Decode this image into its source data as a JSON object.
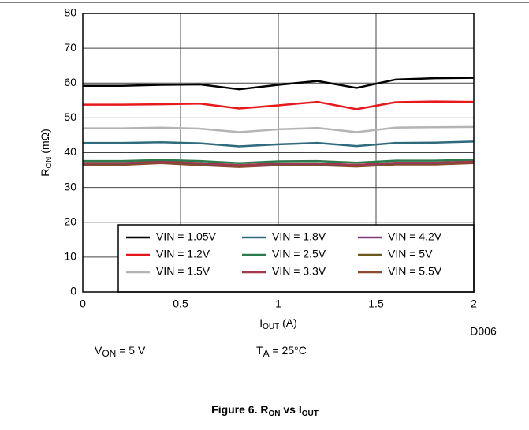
{
  "chart_data": {
    "type": "line",
    "ylabel": [
      "R",
      "ON",
      " (mΩ)"
    ],
    "xlabel": [
      "I",
      "OUT",
      " (A)"
    ],
    "annotations": [
      [
        "V",
        "ON",
        " = 5 V"
      ],
      [
        "T",
        "A",
        " = 25°C"
      ]
    ],
    "caption": [
      "Figure 6. R",
      "ON",
      " vs I",
      "OUT"
    ],
    "figure_id": "D006",
    "x": [
      0,
      0.2,
      0.4,
      0.6,
      0.8,
      1,
      1.2,
      1.4,
      1.6,
      1.8,
      2
    ],
    "xlim": [
      0,
      2
    ],
    "xticks": [
      0,
      0.5,
      1,
      1.5,
      2
    ],
    "ylim": [
      0,
      80
    ],
    "yticks": [
      0,
      10,
      20,
      30,
      40,
      50,
      60,
      70,
      80
    ],
    "grid": true,
    "legend": "lower right",
    "legend_columns": 3,
    "series": [
      {
        "name": "VIN = 1.05V",
        "color": "#000000",
        "values": [
          59.2,
          59.2,
          59.5,
          59.6,
          58.2,
          59.5,
          60.6,
          58.6,
          61,
          61.4,
          61.5
        ]
      },
      {
        "name": "VIN = 1.2V",
        "color": "#e8191c",
        "values": [
          53.8,
          53.8,
          53.9,
          54.1,
          52.7,
          53.6,
          54.6,
          52.5,
          54.5,
          54.7,
          54.6
        ]
      },
      {
        "name": "VIN = 1.5V",
        "color": "#b4b4b4",
        "values": [
          47,
          47,
          47.2,
          46.9,
          45.9,
          46.7,
          47.1,
          45.9,
          47.2,
          47.3,
          47.4
        ]
      },
      {
        "name": "VIN = 1.8V",
        "color": "#2f6a7d",
        "values": [
          42.8,
          42.8,
          43,
          42.7,
          41.8,
          42.4,
          42.8,
          41.9,
          42.8,
          42.9,
          43.2
        ]
      },
      {
        "name": "VIN = 2.5V",
        "color": "#2e7a4f",
        "values": [
          37.6,
          37.6,
          37.9,
          37.6,
          37,
          37.5,
          37.6,
          37.1,
          37.7,
          37.7,
          38
        ]
      },
      {
        "name": "VIN = 3.3V",
        "color": "#a0394a",
        "values": [
          37,
          37,
          37.5,
          37,
          36.4,
          36.9,
          36.9,
          36.5,
          37.1,
          37.1,
          37.5
        ]
      },
      {
        "name": "VIN = 4.2V",
        "color": "#7b3e7a",
        "values": [
          36.9,
          36.9,
          37.4,
          36.9,
          36.3,
          36.8,
          36.8,
          36.4,
          37,
          37,
          37.4
        ]
      },
      {
        "name": "VIN = 5V",
        "color": "#6b5a1e",
        "values": [
          36.8,
          36.8,
          37.3,
          36.8,
          36.2,
          36.7,
          36.7,
          36.3,
          36.9,
          36.9,
          37.3
        ]
      },
      {
        "name": "VIN = 5.5V",
        "color": "#8b4a2a",
        "values": [
          36.5,
          36.5,
          37,
          36.4,
          35.9,
          36.4,
          36.4,
          36,
          36.6,
          36.6,
          37
        ]
      }
    ]
  }
}
